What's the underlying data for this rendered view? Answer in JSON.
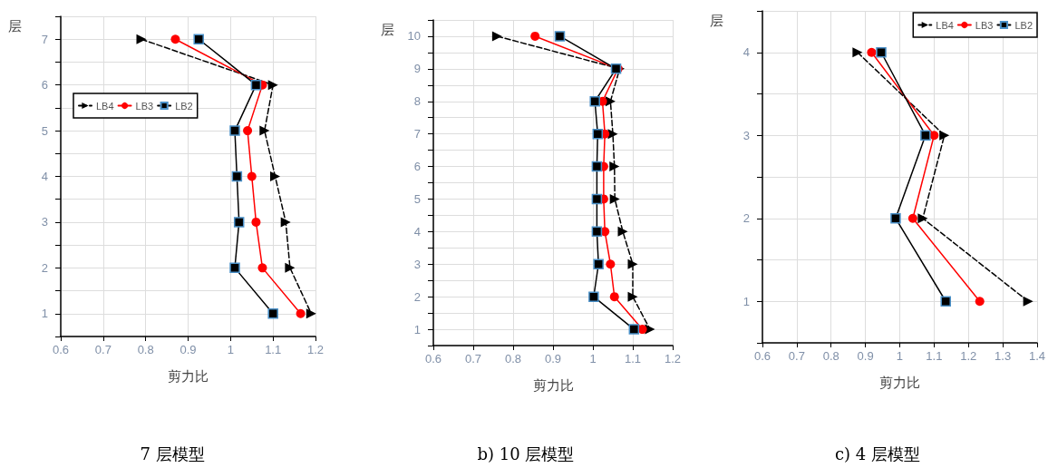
{
  "chart_data": [
    {
      "type": "line",
      "title": "7 层模型",
      "xlabel": "剪力比",
      "ylabel": "层",
      "xlim": [
        0.6,
        1.2
      ],
      "xticks": [
        0.6,
        0.7,
        0.8,
        0.9,
        1,
        1.1,
        1.2
      ],
      "ylim": [
        0.5,
        7.5
      ],
      "yticks": [
        {
          "value": 0.5,
          "label": null
        },
        1,
        {
          "value": 1.5,
          "label": null
        },
        2,
        {
          "value": 2.5,
          "label": null
        },
        3,
        {
          "value": 3.5,
          "label": null
        },
        4,
        {
          "value": 4.5,
          "label": null
        },
        5,
        {
          "value": 5.5,
          "label": null
        },
        6,
        {
          "value": 6.5,
          "label": null
        },
        7,
        {
          "value": 7.5,
          "label": null
        }
      ],
      "grid": true,
      "legend": "left",
      "series": [
        {
          "name": "LB4",
          "color": "#000000",
          "marker": "triangle",
          "line_style": "dashed",
          "x": [
            0.79,
            1.1,
            1.08,
            1.105,
            1.13,
            1.14,
            1.19
          ],
          "values": [
            7,
            6,
            5,
            4,
            3,
            2,
            1
          ]
        },
        {
          "name": "LB3",
          "color": "#ff0000",
          "marker": "circle",
          "line_style": "solid",
          "x": [
            0.87,
            1.075,
            1.04,
            1.05,
            1.06,
            1.075,
            1.165
          ],
          "values": [
            7,
            6,
            5,
            4,
            3,
            2,
            1
          ]
        },
        {
          "name": "LB2",
          "color": "#000000",
          "marker": "square",
          "line_style": "solid",
          "x": [
            0.925,
            1.06,
            1.01,
            1.015,
            1.02,
            1.01,
            1.1
          ],
          "values": [
            7,
            6,
            5,
            4,
            3,
            2,
            1
          ]
        }
      ]
    },
    {
      "type": "line",
      "title": "b) 10 层模型",
      "xlabel": "剪力比",
      "ylabel": "层",
      "xlim": [
        0.6,
        1.2
      ],
      "xticks": [
        0.6,
        0.7,
        0.8,
        0.9,
        1,
        1.1,
        1.2
      ],
      "ylim": [
        0.5,
        10.5
      ],
      "yticks": [
        {
          "value": 0.5,
          "label": null
        },
        1,
        {
          "value": 1.5,
          "label": null
        },
        2,
        {
          "value": 2.5,
          "label": null
        },
        3,
        {
          "value": 3.5,
          "label": null
        },
        4,
        {
          "value": 4.5,
          "label": null
        },
        5,
        {
          "value": 5.5,
          "label": null
        },
        6,
        {
          "value": 6.5,
          "label": null
        },
        7,
        {
          "value": 7.5,
          "label": null
        },
        8,
        {
          "value": 8.5,
          "label": null
        },
        9,
        {
          "value": 9.5,
          "label": null
        },
        10,
        {
          "value": 10.5,
          "label": null
        }
      ],
      "grid": true,
      "series": [
        {
          "color": "#000000",
          "marker": "triangle",
          "line_style": "dashed",
          "x": [
            0.76,
            1.067,
            1.044,
            1.05,
            1.054,
            1.055,
            1.075,
            1.1,
            1.1,
            1.143
          ],
          "values": [
            10,
            9,
            8,
            7,
            6,
            5,
            4,
            3,
            2,
            1
          ]
        },
        {
          "color": "#ff0000",
          "marker": "circle",
          "line_style": "solid",
          "x": [
            0.855,
            1.063,
            1.024,
            1.03,
            1.027,
            1.027,
            1.03,
            1.044,
            1.054,
            1.124
          ],
          "values": [
            10,
            9,
            8,
            7,
            6,
            5,
            4,
            3,
            2,
            1
          ]
        },
        {
          "color": "#000000",
          "marker": "square",
          "line_style": "solid",
          "x": [
            0.917,
            1.058,
            1.005,
            1.012,
            1.01,
            1.01,
            1.01,
            1.014,
            1.002,
            1.103
          ],
          "values": [
            10,
            9,
            8,
            7,
            6,
            5,
            4,
            3,
            2,
            1
          ]
        }
      ]
    },
    {
      "type": "line",
      "title": "c) 4 层模型",
      "xlabel": "剪力比",
      "ylabel": "层",
      "xlim": [
        0.6,
        1.4
      ],
      "xticks": [
        0.6,
        0.7,
        0.8,
        0.9,
        1,
        1.1,
        1.2,
        1.3,
        1.4
      ],
      "ylim": [
        0.5,
        4.5
      ],
      "yticks": [
        {
          "value": 0.5,
          "label": null
        },
        1,
        {
          "value": 1.5,
          "label": null
        },
        2,
        {
          "value": 2.5,
          "label": null
        },
        3,
        {
          "value": 3.5,
          "label": null
        },
        4,
        {
          "value": 4.5,
          "label": null
        }
      ],
      "grid": true,
      "legend": "top right",
      "series": [
        {
          "name": "LB4",
          "color": "#000000",
          "marker": "triangle",
          "line_style": "dashed",
          "x": [
            0.877,
            1.13,
            1.067,
            1.374
          ],
          "values": [
            4,
            3,
            2,
            1
          ]
        },
        {
          "name": "LB3",
          "color": "#ff0000",
          "marker": "circle",
          "line_style": "solid",
          "x": [
            0.918,
            1.1,
            1.038,
            1.233
          ],
          "values": [
            4,
            3,
            2,
            1
          ]
        },
        {
          "name": "LB2",
          "color": "#000000",
          "marker": "square",
          "line_style": "solid",
          "x": [
            0.946,
            1.075,
            0.988,
            1.134
          ],
          "values": [
            4,
            3,
            2,
            1
          ]
        }
      ]
    }
  ]
}
